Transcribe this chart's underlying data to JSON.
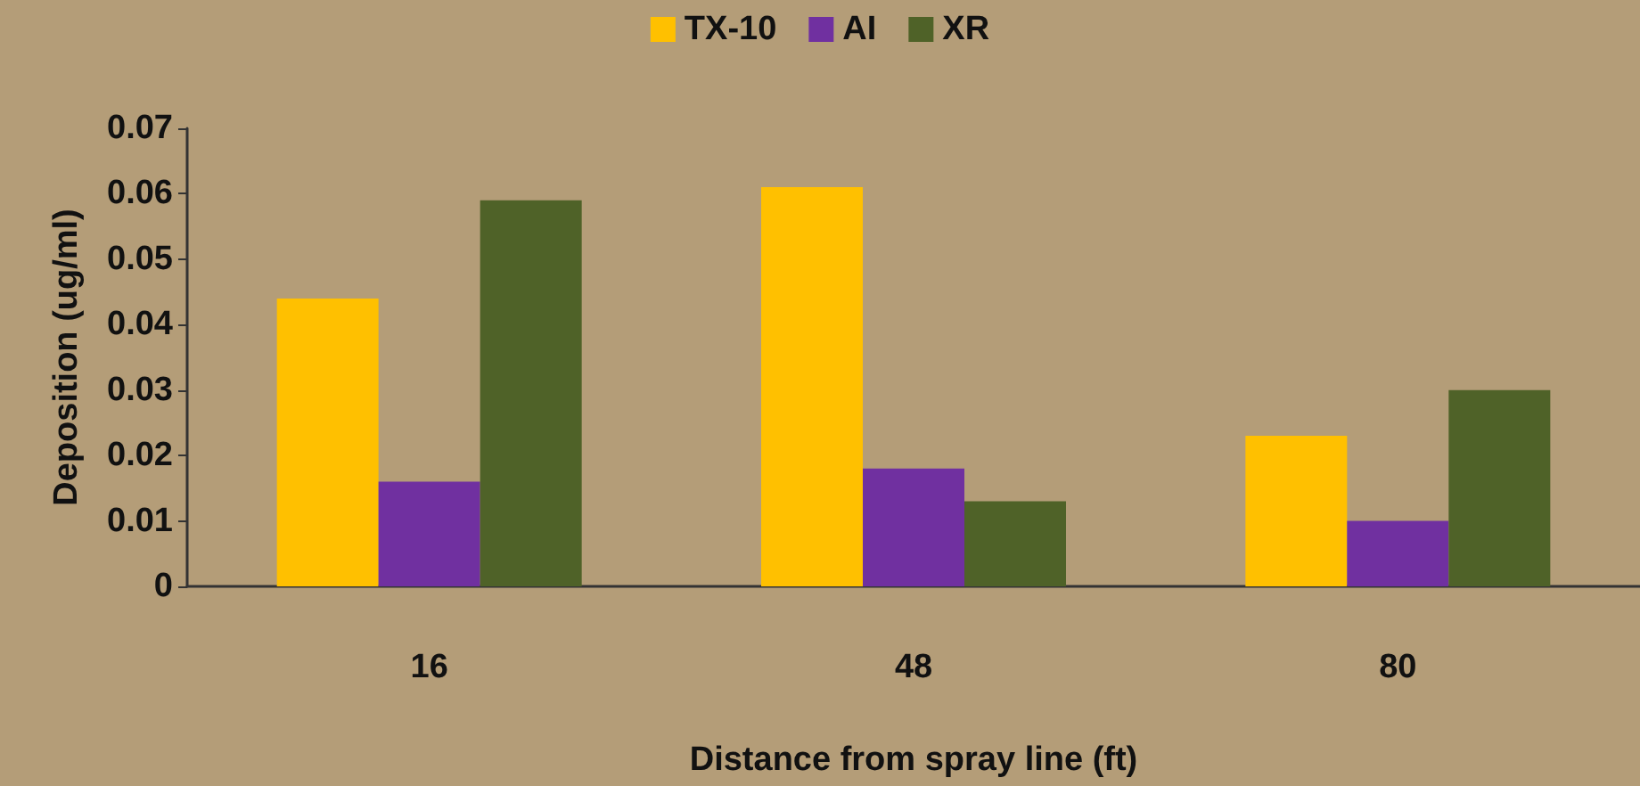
{
  "chart_data": {
    "type": "bar",
    "xlabel": "Distance from spray line (ft)",
    "ylabel": "Deposition (ug/ml)",
    "categories": [
      "16",
      "48",
      "80"
    ],
    "series": [
      {
        "name": "TX-10",
        "color": "#ffc000",
        "values": [
          0.044,
          0.061,
          0.023
        ]
      },
      {
        "name": "AI",
        "color": "#7030a0",
        "values": [
          0.016,
          0.018,
          0.01
        ]
      },
      {
        "name": "XR",
        "color": "#4f6228",
        "values": [
          0.059,
          0.013,
          0.03
        ]
      }
    ],
    "ylim": [
      0,
      0.07
    ],
    "yticks": [
      0,
      0.01,
      0.02,
      0.03,
      0.04,
      0.05,
      0.06,
      0.07
    ],
    "grid": false,
    "legend": "top"
  }
}
